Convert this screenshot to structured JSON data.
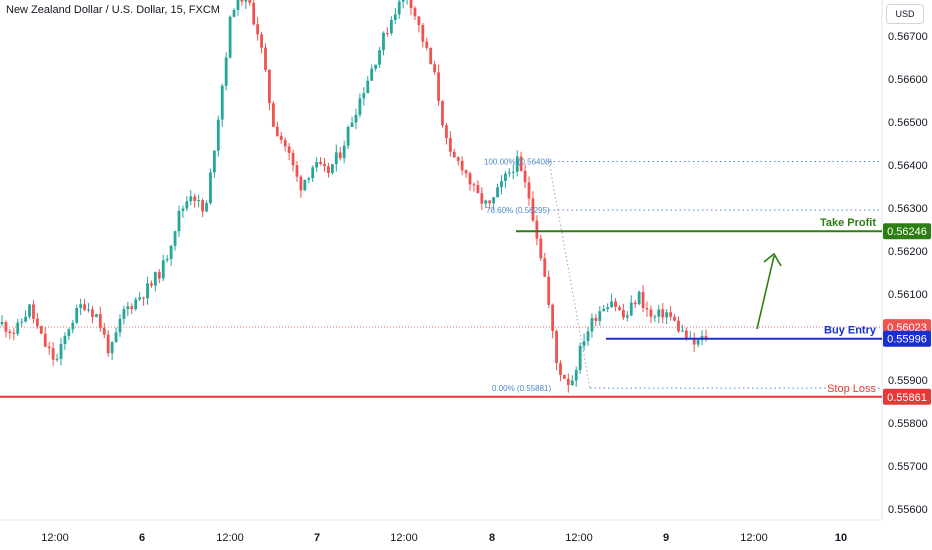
{
  "header": {
    "title": "New Zealand Dollar / U.S. Dollar, 15, FXCM",
    "currency_button": "USD"
  },
  "colors": {
    "up": "#26a69a",
    "down": "#ef5350",
    "take_profit": "#2e7d12",
    "buy_entry": "#1a2fd1",
    "stop_loss": "#e53935",
    "last_price": "#ef5350",
    "fib": "#4f86c6"
  },
  "chart_data": {
    "type": "candlestick",
    "symbol": "New Zealand Dollar / U.S. Dollar",
    "interval": "15",
    "source": "FXCM",
    "y_axis": {
      "ylim": [
        0.5555,
        0.5682
      ],
      "ticks": [
        "0.56700",
        "0.56600",
        "0.56500",
        "0.56400",
        "0.56300",
        "0.56200",
        "0.56100",
        "0.55900",
        "0.55800",
        "0.55700",
        "0.55600"
      ]
    },
    "x_axis": {
      "ticks": [
        "12:00",
        "6",
        "12:00",
        "7",
        "12:00",
        "8",
        "12:00",
        "9",
        "12:00",
        "10"
      ],
      "bold": [
        false,
        true,
        false,
        true,
        false,
        true,
        false,
        true,
        false,
        true
      ]
    },
    "price_path": [
      0.5603,
      0.5601,
      0.5607,
      0.5599,
      0.5594,
      0.5603,
      0.5608,
      0.5605,
      0.5596,
      0.5606,
      0.5609,
      0.5612,
      0.5617,
      0.5628,
      0.5634,
      0.5628,
      0.5652,
      0.5677,
      0.568,
      0.567,
      0.565,
      0.5644,
      0.5635,
      0.564,
      0.5638,
      0.5643,
      0.5652,
      0.566,
      0.5668,
      0.5676,
      0.568,
      0.567,
      0.566,
      0.5642,
      0.564,
      0.5633,
      0.563,
      0.5636,
      0.5641,
      0.5632,
      0.5616,
      0.5593,
      0.5589,
      0.56,
      0.5606,
      0.5609,
      0.5604,
      0.561,
      0.5604,
      0.5606,
      0.5602,
      0.5598,
      0.56
    ],
    "levels": [
      {
        "label": "Take Profit",
        "price": "0.56246",
        "value": 0.56246,
        "color": "#2e7d12"
      },
      {
        "label": "Buy Entry",
        "price": "0.55996",
        "value": 0.55996,
        "color": "#1a2fd1"
      },
      {
        "label": "Stop Loss",
        "price": "0.55861",
        "value": 0.55861,
        "color": "#e53935"
      }
    ],
    "last_price": {
      "price": "0.56023",
      "value": 0.56023
    },
    "fibonacci": [
      {
        "label": "100.00% (0.56408)",
        "value": 0.56408
      },
      {
        "label": "78.60% (0.56295)",
        "value": 0.56295
      },
      {
        "label": "0.00% (0.55881)",
        "value": 0.55881
      }
    ]
  }
}
